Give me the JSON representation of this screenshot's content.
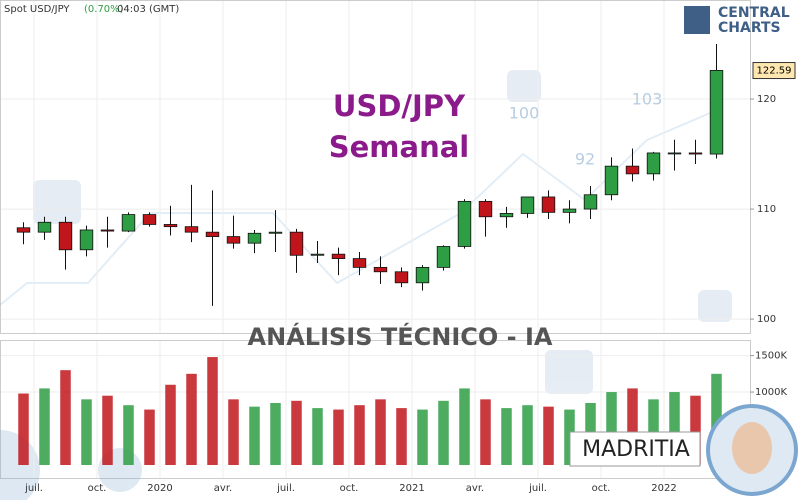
{
  "chart_data": {
    "type": "candlestick",
    "header": {
      "instrument": "Spot USD/JPY",
      "change": "(0.70%)",
      "time": "04:03 (GMT)"
    },
    "title": "USD/JPY",
    "subtitle": "Semanal",
    "banner": "ANÁLISIS TÉCNICO - IA",
    "brand": [
      "CENTRAL",
      "CHARTS"
    ],
    "signature": "MADRITIA",
    "background_labels": [
      "100",
      "92",
      "103"
    ],
    "x": [
      "2019-06",
      "2019-07",
      "2019-08",
      "2019-09",
      "2019-10",
      "2019-11",
      "2019-12",
      "2020-01",
      "2020-02",
      "2020-03",
      "2020-04",
      "2020-05",
      "2020-06",
      "2020-07",
      "2020-08",
      "2020-09",
      "2020-10",
      "2020-11",
      "2020-12",
      "2021-01",
      "2021-02",
      "2021-03",
      "2021-04",
      "2021-05",
      "2021-06",
      "2021-07",
      "2021-08",
      "2021-09",
      "2021-10",
      "2021-11",
      "2021-12",
      "2022-01",
      "2022-02",
      "2022-03"
    ],
    "open": [
      108.3,
      107.9,
      108.8,
      106.3,
      108.1,
      108.0,
      109.5,
      108.6,
      108.4,
      107.9,
      107.5,
      106.9,
      107.8,
      107.9,
      105.8,
      105.9,
      105.5,
      104.7,
      104.3,
      103.3,
      104.7,
      106.6,
      110.7,
      109.3,
      109.6,
      111.1,
      109.7,
      110.0,
      111.3,
      113.9,
      113.2,
      115.1,
      115.1,
      115.0
    ],
    "high": [
      108.8,
      109.3,
      109.3,
      108.5,
      109.3,
      109.7,
      109.7,
      110.3,
      112.2,
      111.7,
      109.4,
      108.1,
      109.9,
      108.2,
      107.1,
      106.5,
      106.1,
      105.7,
      104.7,
      104.9,
      106.7,
      110.9,
      110.9,
      110.2,
      111.1,
      111.7,
      110.8,
      112.1,
      114.7,
      115.5,
      115.2,
      116.3,
      116.3,
      125.0
    ],
    "low": [
      106.8,
      107.2,
      104.5,
      105.7,
      106.5,
      107.9,
      108.4,
      107.6,
      107.0,
      101.2,
      106.4,
      106.0,
      106.1,
      104.2,
      105.1,
      104.0,
      104.0,
      103.2,
      102.9,
      102.6,
      104.4,
      106.4,
      107.5,
      108.3,
      109.2,
      109.1,
      108.7,
      109.1,
      110.8,
      112.5,
      112.6,
      113.5,
      114.1,
      114.6
    ],
    "close": [
      107.9,
      108.8,
      106.3,
      108.1,
      108.0,
      109.5,
      108.6,
      108.4,
      107.9,
      107.5,
      106.9,
      107.8,
      107.9,
      105.8,
      105.9,
      105.5,
      104.7,
      104.3,
      103.3,
      104.7,
      106.6,
      110.7,
      109.3,
      109.6,
      111.1,
      109.7,
      110.0,
      111.3,
      113.9,
      113.2,
      115.1,
      115.1,
      115.0,
      122.6
    ],
    "volume": [
      980000,
      1050000,
      1300000,
      900000,
      950000,
      820000,
      760000,
      1100000,
      1250000,
      1480000,
      900000,
      800000,
      850000,
      880000,
      780000,
      760000,
      820000,
      900000,
      780000,
      760000,
      880000,
      1050000,
      900000,
      780000,
      820000,
      800000,
      760000,
      850000,
      1000000,
      1050000,
      900000,
      1000000,
      950000,
      1250000
    ],
    "up_color": "#2e9e44",
    "down_color": "#c0161b",
    "xlim": [
      "2019-06",
      "2022-04"
    ],
    "xticks": [
      {
        "value": "2019-07",
        "label": "juil."
      },
      {
        "value": "2019-10",
        "label": "oct."
      },
      {
        "value": "2020-01",
        "label": "2020"
      },
      {
        "value": "2020-04",
        "label": "avr."
      },
      {
        "value": "2020-07",
        "label": "juil."
      },
      {
        "value": "2020-10",
        "label": "oct."
      },
      {
        "value": "2021-01",
        "label": "2021"
      },
      {
        "value": "2021-04",
        "label": "avr."
      },
      {
        "value": "2021-07",
        "label": "juil."
      },
      {
        "value": "2021-10",
        "label": "oct."
      },
      {
        "value": "2022-01",
        "label": "2022"
      }
    ],
    "ylim": [
      99.1,
      129
    ],
    "yticks": [
      100,
      110,
      120
    ],
    "last_price": 122.59,
    "volume_ylim": [
      0,
      1700000
    ],
    "volume_yticks": [
      {
        "value": 1000000,
        "label": "1000K"
      },
      {
        "value": 1500000,
        "label": "1500K"
      }
    ],
    "grid": true
  }
}
